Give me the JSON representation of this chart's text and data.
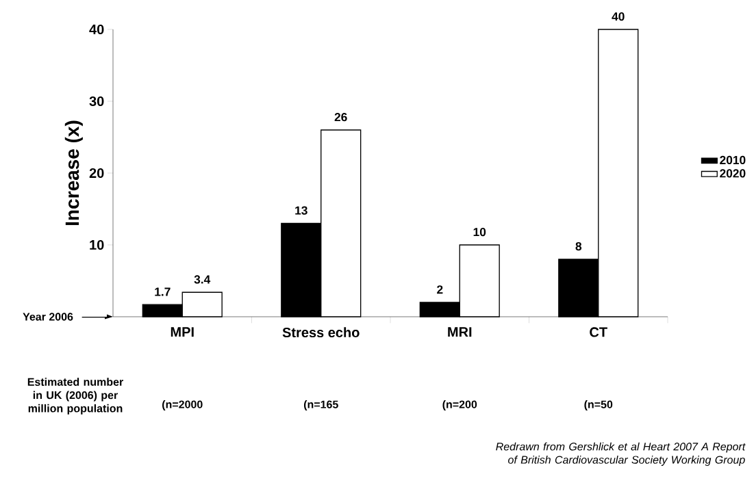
{
  "chart_data": {
    "type": "bar",
    "ylabel": "Increase (x)",
    "categories": [
      "MPI",
      "Stress echo",
      "MRI",
      "CT"
    ],
    "series": [
      {
        "name": "2010",
        "color": "#000000",
        "values": [
          1.7,
          13,
          2,
          8
        ]
      },
      {
        "name": "2020",
        "color": "#ffffff",
        "values": [
          3.4,
          26,
          10,
          40
        ]
      }
    ],
    "ylim": [
      0,
      40
    ],
    "yticks": [
      10,
      20,
      30,
      40
    ],
    "data_labels": true,
    "legend": "right",
    "annotations": [
      "Year 2006",
      "Estimated number in UK (2006) per million population",
      "(n=2000",
      "(n=165",
      "(n=200",
      "(n=50",
      "*Redrawn from Gershlick et al Heart 2007 A Report of British Cardiovascular Society Working Group*"
    ]
  }
}
